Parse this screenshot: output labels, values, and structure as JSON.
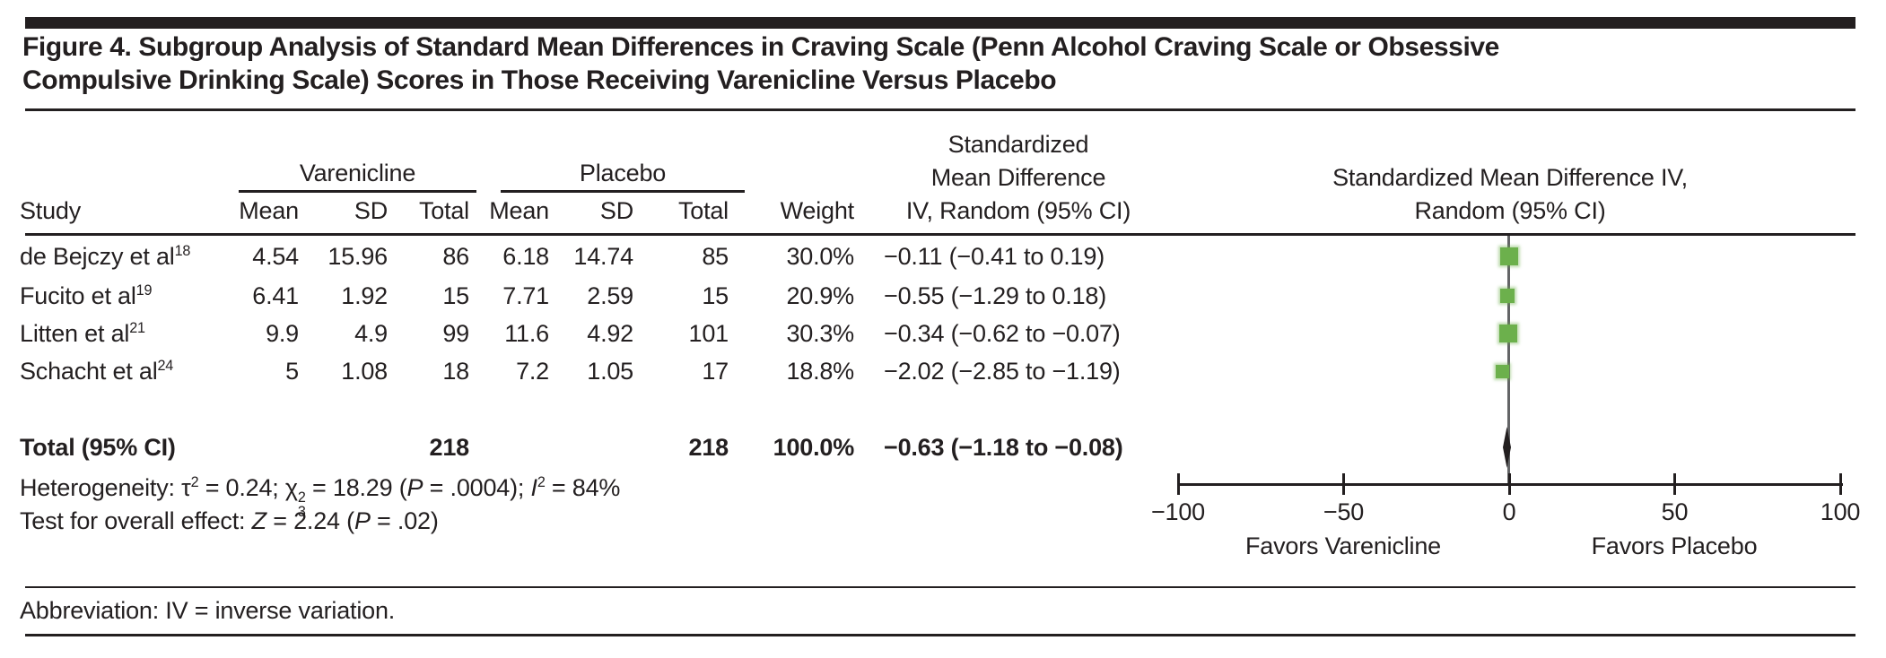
{
  "title": {
    "line1": "Figure 4. Subgroup Analysis of Standard Mean Differences in Craving Scale (Penn Alcohol Craving Scale or Obsessive",
    "line2": "Compulsive Drinking Scale) Scores in Those Receiving Varenicline Versus Placebo"
  },
  "table": {
    "groups": {
      "varenicline": "Varenicline",
      "placebo": "Placebo"
    },
    "columns": {
      "study": "Study",
      "mean": "Mean",
      "sd": "SD",
      "total": "Total",
      "weight": "Weight"
    },
    "smd_header": {
      "line1": "Standardized",
      "line2": "Mean Difference",
      "line3": "IV, Random (95% CI)"
    },
    "plot_header": {
      "line1": "Standardized Mean Difference IV,",
      "line2": "Random (95% CI)"
    },
    "rows": [
      {
        "study": "de Bejczy et al",
        "ref": "18",
        "v_mean": "4.54",
        "v_sd": "15.96",
        "v_total": "86",
        "p_mean": "6.18",
        "p_sd": "14.74",
        "p_total": "85",
        "weight": "30.0%",
        "smd_ci": "−0.11 (−0.41 to 0.19)"
      },
      {
        "study": "Fucito et al",
        "ref": "19",
        "v_mean": "6.41",
        "v_sd": "1.92",
        "v_total": "15",
        "p_mean": "7.71",
        "p_sd": "2.59",
        "p_total": "15",
        "weight": "20.9%",
        "smd_ci": "−0.55 (−1.29 to 0.18)"
      },
      {
        "study": "Litten et al",
        "ref": "21",
        "v_mean": "9.9",
        "v_sd": "4.9",
        "v_total": "99",
        "p_mean": "11.6",
        "p_sd": "4.92",
        "p_total": "101",
        "weight": "30.3%",
        "smd_ci": "−0.34 (−0.62 to −0.07)"
      },
      {
        "study": "Schacht et al",
        "ref": "24",
        "v_mean": "5",
        "v_sd": "1.08",
        "v_total": "18",
        "p_mean": "7.2",
        "p_sd": "1.05",
        "p_total": "17",
        "weight": "18.8%",
        "smd_ci": "−2.02 (−2.85 to −1.19)"
      }
    ],
    "total_row": {
      "label": "Total (95% CI)",
      "v_total": "218",
      "p_total": "218",
      "weight": "100.0%",
      "smd_ci": "−0.63 (−1.18 to −0.08)"
    }
  },
  "stats": {
    "het": {
      "prefix": "Heterogeneity: τ",
      "tau_sup": "2",
      "seg1": " = 0.24; χ",
      "chi_sup": "2",
      "chi_sub": "3",
      "seg2": " = 18.29 (",
      "p": "P",
      "seg3": " = .0004); ",
      "i": "I",
      "i_sup": "2",
      "seg4": " = 84%"
    },
    "overall": {
      "prefix": "Test for overall effect: ",
      "z": "Z",
      "seg1": " = 2.24 (",
      "p": "P",
      "seg2": " = .02)"
    }
  },
  "footer": {
    "abbreviation": "Abbreviation: IV = inverse variation."
  },
  "chart_data": {
    "type": "forest",
    "xlim": [
      -100,
      100
    ],
    "x_ticks": [
      -100,
      -50,
      0,
      50,
      100
    ],
    "favors_left": "Favors Varenicline",
    "favors_right": "Favors Placebo",
    "marker_color": "#6cb04c",
    "diamond_color": "#231f20",
    "studies": [
      {
        "name": "de Bejczy et al 18",
        "smd": -0.11,
        "ci": [
          -0.41,
          0.19
        ],
        "weight_pct": 30.0
      },
      {
        "name": "Fucito et al 19",
        "smd": -0.55,
        "ci": [
          -1.29,
          0.18
        ],
        "weight_pct": 20.9
      },
      {
        "name": "Litten et al 21",
        "smd": -0.34,
        "ci": [
          -0.62,
          -0.07
        ],
        "weight_pct": 30.3
      },
      {
        "name": "Schacht et al 24",
        "smd": -2.02,
        "ci": [
          -2.85,
          -1.19
        ],
        "weight_pct": 18.8
      }
    ],
    "total": {
      "smd": -0.63,
      "ci": [
        -1.18,
        -0.08
      ],
      "weight_pct": 100.0
    }
  }
}
